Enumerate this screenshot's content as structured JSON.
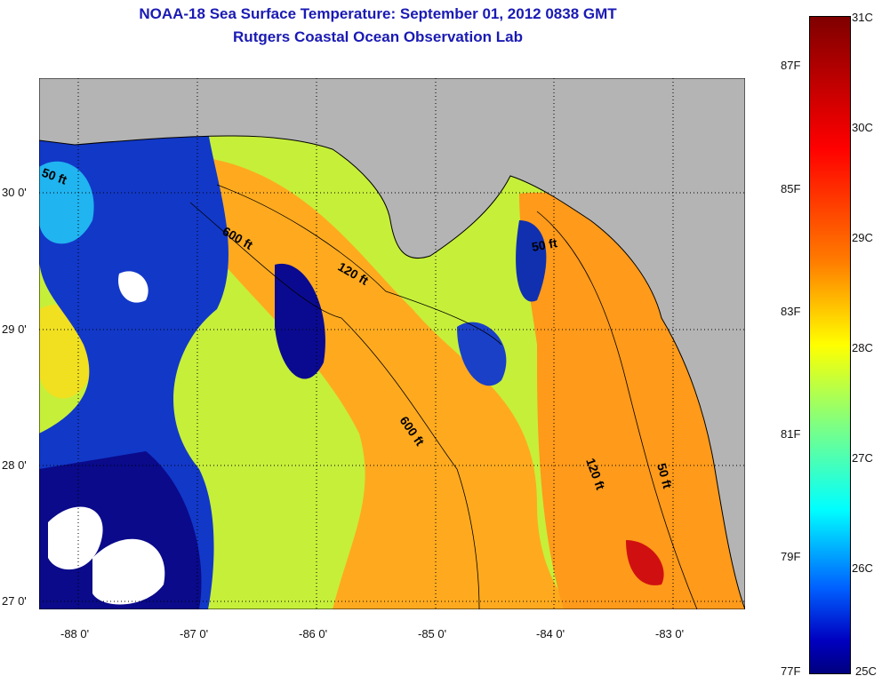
{
  "title": {
    "line1": "NOAA-18 Sea Surface Temperature:  September 01, 2012 0838 GMT",
    "line2": "Rutgers Coastal Ocean Observation Lab"
  },
  "map": {
    "lat_ticks": [
      {
        "value": 30,
        "label": "30 0'"
      },
      {
        "value": 29,
        "label": "29 0'"
      },
      {
        "value": 28,
        "label": "28 0'"
      },
      {
        "value": 27,
        "label": "27 0'"
      }
    ],
    "lon_ticks": [
      {
        "value": -88,
        "label": "-88 0'"
      },
      {
        "value": -87,
        "label": "-87 0'"
      },
      {
        "value": -86,
        "label": "-86 0'"
      },
      {
        "value": -85,
        "label": "-85 0'"
      },
      {
        "value": -84,
        "label": "-84 0'"
      },
      {
        "value": -83,
        "label": "-83 0'"
      }
    ],
    "contour_labels": [
      "50 ft",
      "600 ft",
      "120 ft",
      "600 ft",
      "50 ft",
      "120 ft",
      "50 ft"
    ],
    "colors": {
      "land": "#b4b4b4",
      "cloud": "#ffffff"
    }
  },
  "colorbar": {
    "celsius": [
      {
        "value": 31,
        "label": "31C"
      },
      {
        "value": 30,
        "label": "30C"
      },
      {
        "value": 29,
        "label": "29C"
      },
      {
        "value": 28,
        "label": "28C"
      },
      {
        "value": 27,
        "label": "27C"
      },
      {
        "value": 26,
        "label": "26C"
      },
      {
        "value": 25,
        "label": "25C"
      }
    ],
    "fahrenheit": [
      {
        "value": 87,
        "label": "87F"
      },
      {
        "value": 85,
        "label": "85F"
      },
      {
        "value": 83,
        "label": "83F"
      },
      {
        "value": 81,
        "label": "81F"
      },
      {
        "value": 79,
        "label": "79F"
      },
      {
        "value": 77,
        "label": "77F"
      }
    ],
    "range_c": [
      25,
      31
    ]
  }
}
